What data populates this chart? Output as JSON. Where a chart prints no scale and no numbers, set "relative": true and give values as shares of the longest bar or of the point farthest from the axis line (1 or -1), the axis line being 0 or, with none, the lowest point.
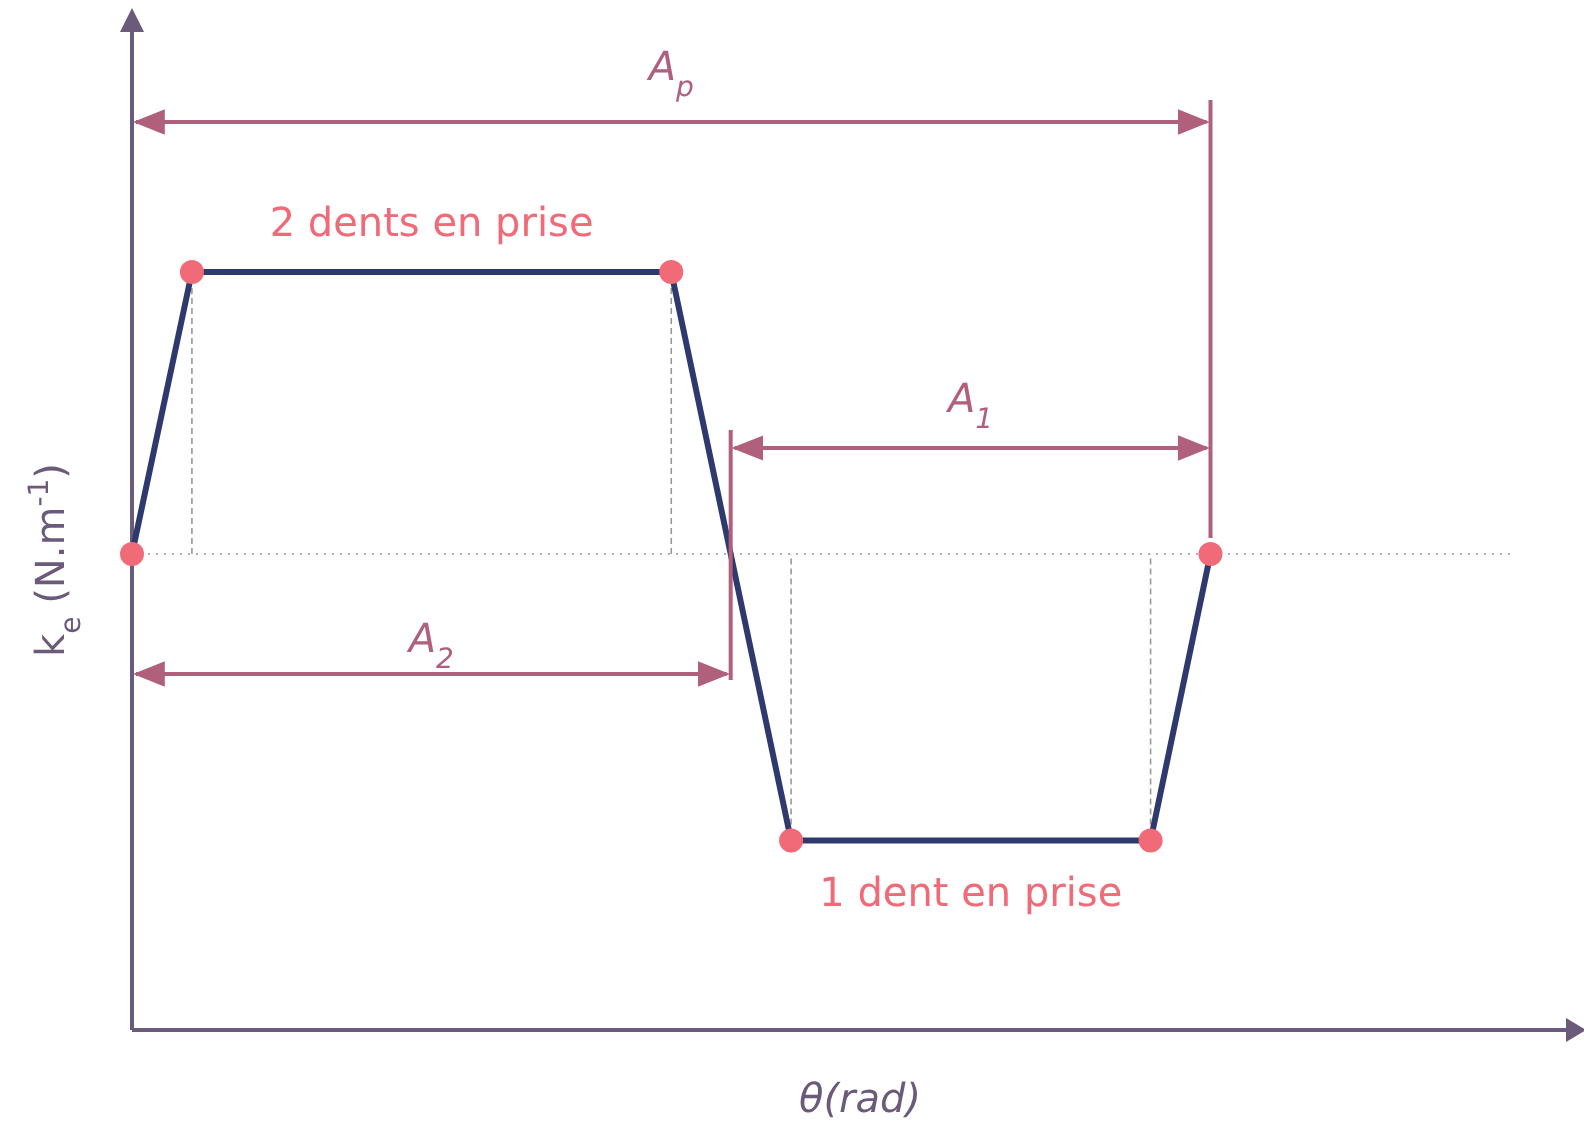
{
  "chart_data": {
    "type": "line",
    "relative": true,
    "xlabel": "θ(rad)",
    "ylabel": "k$_{e}$ (N.m$^{-1}$)",
    "categories": [
      null,
      null,
      null,
      null,
      null,
      null,
      null,
      null,
      null,
      null,
      null,
      null,
      null,
      null,
      null,
      null,
      null,
      null,
      null
    ],
    "series": [
      {
        "color": "#2e3a6e",
        "values": [
          0.628,
          1,
          1,
          1,
          1,
          1,
          1,
          1,
          1,
          1,
          0.625,
          0.25,
          0.25,
          0.25,
          0.25,
          0.25,
          0.25,
          0.25,
          0.628
        ]
      }
    ],
    "marker": "none",
    "grid": false,
    "ref_lines": [
      {
        "axis": "y",
        "value": 0.628,
        "color": "#b0b0b0",
        "line_style": "dotted"
      }
    ],
    "annotations": [
      "2 dents en prise",
      "1 dent en prise",
      "A$_{p}$",
      "A$_{1}$",
      "A$_{2}$"
    ]
  }
}
